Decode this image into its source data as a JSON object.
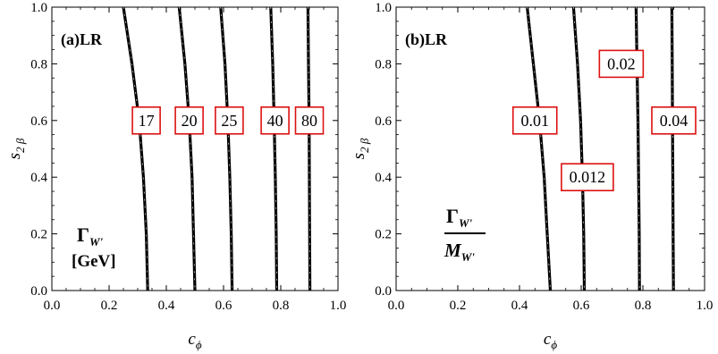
{
  "chart_data": [
    {
      "type": "line",
      "panel_label": "(a)LR",
      "xlabel": "c",
      "xlabel_sub": "ϕ",
      "ylabel": "s",
      "ylabel_sub": "2 β",
      "xlim": [
        0,
        1
      ],
      "ylim": [
        0,
        1
      ],
      "x_ticks": [
        "0.0",
        "0.2",
        "0.4",
        "0.6",
        "0.8",
        "1.0"
      ],
      "y_ticks": [
        "0.0",
        "0.2",
        "0.4",
        "0.6",
        "0.8",
        "1.0"
      ],
      "annotation": {
        "symbol": "Γ",
        "sub": "W'",
        "unit": "[GeV]"
      },
      "series": [
        {
          "contour_label": "17",
          "label_at": [
            0.33,
            0.6
          ],
          "points": [
            [
              0.25,
              1.0
            ],
            [
              0.28,
              0.8
            ],
            [
              0.305,
              0.6
            ],
            [
              0.32,
              0.4
            ],
            [
              0.33,
              0.2
            ],
            [
              0.335,
              0.0
            ]
          ]
        },
        {
          "contour_label": "20",
          "label_at": [
            0.48,
            0.6
          ],
          "points": [
            [
              0.445,
              1.0
            ],
            [
              0.465,
              0.8
            ],
            [
              0.48,
              0.6
            ],
            [
              0.49,
              0.4
            ],
            [
              0.495,
              0.2
            ],
            [
              0.5,
              0.0
            ]
          ]
        },
        {
          "contour_label": "25",
          "label_at": [
            0.62,
            0.6
          ],
          "points": [
            [
              0.59,
              1.0
            ],
            [
              0.605,
              0.8
            ],
            [
              0.615,
              0.6
            ],
            [
              0.622,
              0.4
            ],
            [
              0.627,
              0.2
            ],
            [
              0.63,
              0.0
            ]
          ]
        },
        {
          "contour_label": "40",
          "label_at": [
            0.78,
            0.6
          ],
          "points": [
            [
              0.765,
              1.0
            ],
            [
              0.772,
              0.8
            ],
            [
              0.777,
              0.6
            ],
            [
              0.781,
              0.4
            ],
            [
              0.784,
              0.2
            ],
            [
              0.786,
              0.0
            ]
          ]
        },
        {
          "contour_label": "80",
          "label_at": [
            0.9,
            0.6
          ],
          "points": [
            [
              0.895,
              1.0
            ],
            [
              0.897,
              0.8
            ],
            [
              0.899,
              0.6
            ],
            [
              0.9,
              0.4
            ],
            [
              0.901,
              0.2
            ],
            [
              0.902,
              0.0
            ]
          ]
        }
      ]
    },
    {
      "type": "line",
      "panel_label": "(b)LR",
      "xlabel": "c",
      "xlabel_sub": "ϕ",
      "ylabel": "s",
      "ylabel_sub": "2 β",
      "xlim": [
        0,
        1
      ],
      "ylim": [
        0,
        1
      ],
      "x_ticks": [
        "0.0",
        "0.2",
        "0.4",
        "0.6",
        "0.8",
        "1.0"
      ],
      "y_ticks": [
        "0.0",
        "0.2",
        "0.4",
        "0.6",
        "0.8",
        "1.0"
      ],
      "annotation": {
        "numerator": "Γ",
        "numerator_sub": "W'",
        "denominator": "M",
        "denominator_sub": "W'"
      },
      "series": [
        {
          "contour_label": "0.01",
          "label_at": [
            0.45,
            0.6
          ],
          "points": [
            [
              0.425,
              1.0
            ],
            [
              0.445,
              0.8
            ],
            [
              0.465,
              0.6
            ],
            [
              0.48,
              0.4
            ],
            [
              0.49,
              0.2
            ],
            [
              0.5,
              0.0
            ]
          ]
        },
        {
          "contour_label": "0.012",
          "label_at": [
            0.62,
            0.4
          ],
          "points": [
            [
              0.575,
              1.0
            ],
            [
              0.588,
              0.8
            ],
            [
              0.598,
              0.6
            ],
            [
              0.604,
              0.4
            ],
            [
              0.608,
              0.2
            ],
            [
              0.61,
              0.0
            ]
          ]
        },
        {
          "contour_label": "0.02",
          "label_at": [
            0.73,
            0.8
          ],
          "points": [
            [
              0.778,
              1.0
            ],
            [
              0.781,
              0.8
            ],
            [
              0.784,
              0.6
            ],
            [
              0.786,
              0.4
            ],
            [
              0.788,
              0.2
            ],
            [
              0.789,
              0.0
            ]
          ]
        },
        {
          "contour_label": "0.04",
          "label_at": [
            0.9,
            0.6
          ],
          "points": [
            [
              0.894,
              1.0
            ],
            [
              0.895,
              0.8
            ],
            [
              0.896,
              0.6
            ],
            [
              0.897,
              0.4
            ],
            [
              0.898,
              0.2
            ],
            [
              0.899,
              0.0
            ]
          ]
        }
      ]
    }
  ]
}
